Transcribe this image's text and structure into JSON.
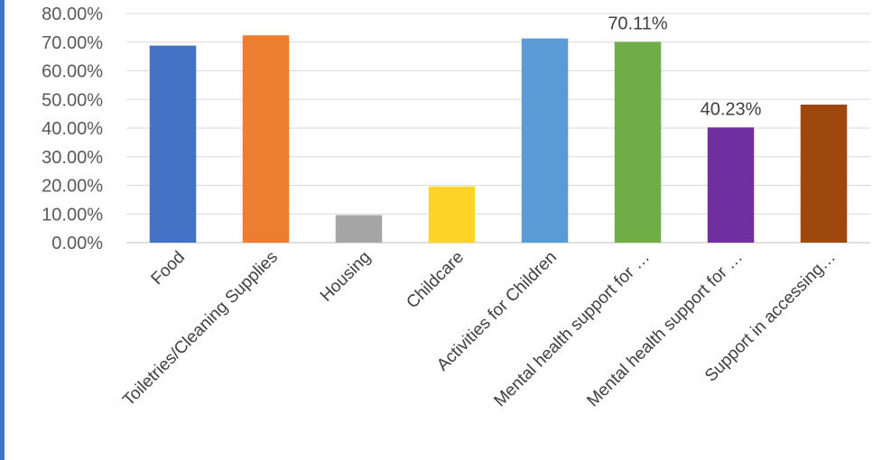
{
  "chart_data": {
    "type": "bar",
    "categories": [
      "Food",
      "Toiletries/Cleaning Supplies",
      "Housing",
      "Childcare",
      "Activities for Children",
      "Mental health support for …",
      "Mental health support for …",
      "Support in accessing…"
    ],
    "values": [
      68.8,
      72.4,
      9.6,
      19.6,
      71.3,
      70.11,
      40.23,
      48.2
    ],
    "data_labels": [
      "",
      "",
      "",
      "",
      "",
      "70.11%",
      "40.23%",
      ""
    ],
    "colors": [
      "#4472C4",
      "#ED7D31",
      "#A5A5A5",
      "#FFD42A",
      "#5B9BD5",
      "#70AD47",
      "#7030A0",
      "#9E480E"
    ],
    "yticks": [
      "0.00%",
      "10.00%",
      "20.00%",
      "30.00%",
      "40.00%",
      "50.00%",
      "60.00%",
      "70.00%",
      "80.00%"
    ],
    "ylim": [
      0,
      80
    ],
    "title": "",
    "xlabel": "",
    "ylabel": "",
    "grid": true,
    "legend": "none"
  }
}
